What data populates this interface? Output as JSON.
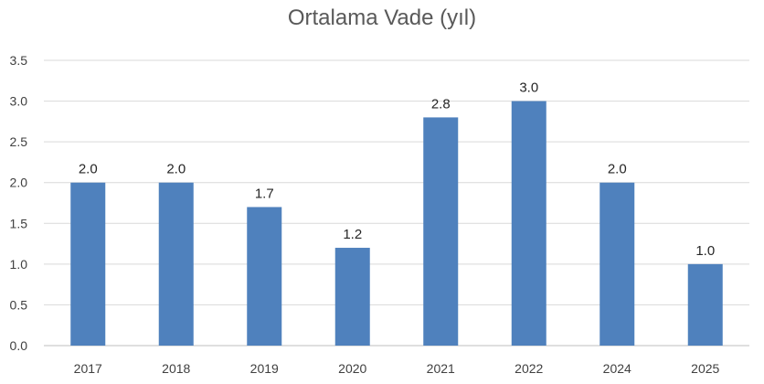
{
  "chart_data": {
    "type": "bar",
    "title": "Ortalama Vade (yıl)",
    "categories": [
      "2017",
      "2018",
      "2019",
      "2020",
      "2021",
      "2022",
      "2024",
      "2025"
    ],
    "values": [
      2.0,
      2.0,
      1.7,
      1.2,
      2.8,
      3.0,
      2.0,
      1.0
    ],
    "data_labels": [
      "2.0",
      "2.0",
      "1.7",
      "1.2",
      "2.8",
      "3.0",
      "2.0",
      "1.0"
    ],
    "y_ticks": [
      "0.0",
      "0.5",
      "1.0",
      "1.5",
      "2.0",
      "2.5",
      "3.0",
      "3.5"
    ],
    "ylim": [
      0,
      3.5
    ],
    "xlabel": "",
    "ylabel": "",
    "grid": true,
    "legend": "none",
    "colors": {
      "bar": "#4f81bd",
      "grid": "#d9d9d9",
      "title": "#595959"
    }
  }
}
